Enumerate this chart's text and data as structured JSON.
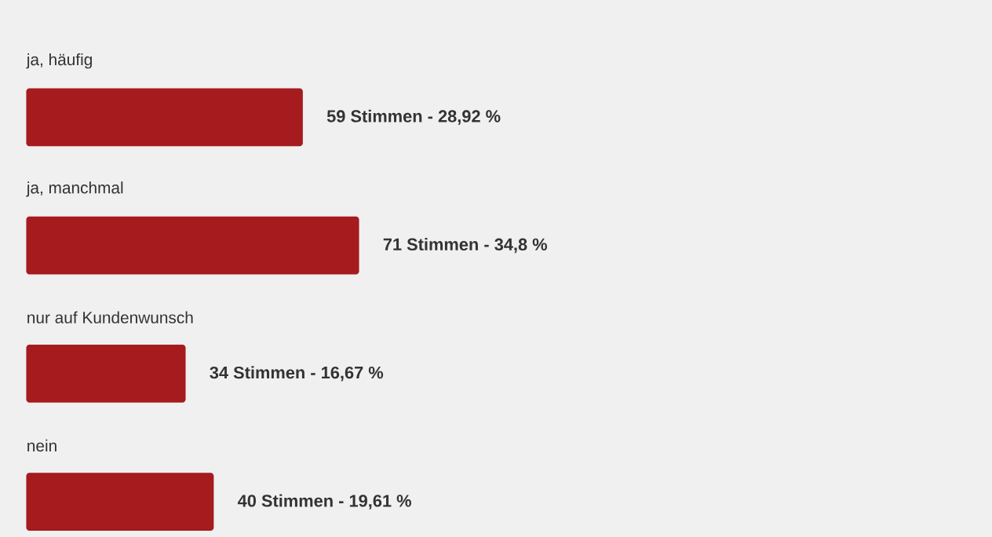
{
  "chart_data": {
    "type": "bar",
    "orientation": "horizontal",
    "categories": [
      "ja, häufig",
      "ja, manchmal",
      "nur auf Kundenwunsch",
      "nein"
    ],
    "values": [
      59,
      71,
      34,
      40
    ],
    "value_labels": [
      "59 Stimmen - 28,92 %",
      "71 Stimmen - 34,8 %",
      "34 Stimmen - 16,67 %",
      "40 Stimmen - 19,61 %"
    ],
    "color": "#a61b1d"
  }
}
